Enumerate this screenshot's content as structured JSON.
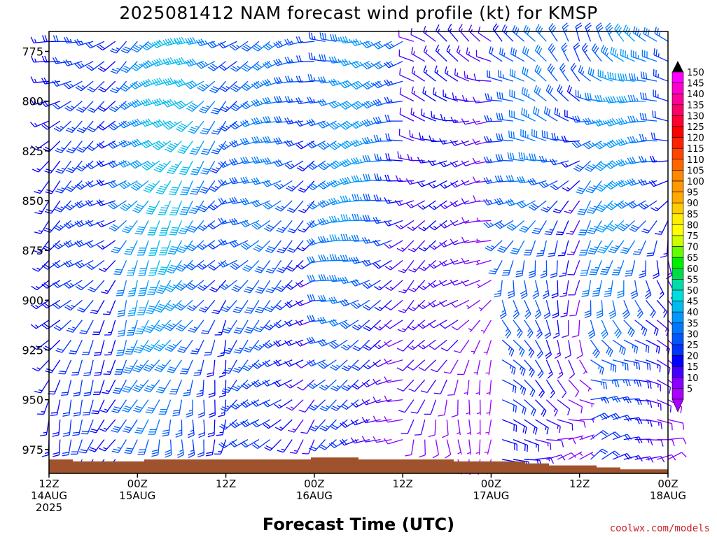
{
  "chart_data": {
    "type": "wind-barb-profile",
    "title": "2025081412 NAM forecast wind profile (kt) for KMSP",
    "xlabel": "Forecast Time (UTC)",
    "ylabel": "",
    "credit": "coolwx.com/models",
    "y_ticks": [
      "775",
      "800",
      "825",
      "850",
      "875",
      "900",
      "925",
      "950",
      "975"
    ],
    "ylim": [
      765,
      987
    ],
    "x_ticks": [
      {
        "hour": 0,
        "lines": [
          "12Z",
          "14AUG",
          "2025"
        ]
      },
      {
        "hour": 12,
        "lines": [
          "00Z",
          "15AUG"
        ]
      },
      {
        "hour": 24,
        "lines": [
          "12Z"
        ]
      },
      {
        "hour": 36,
        "lines": [
          "00Z",
          "16AUG"
        ]
      },
      {
        "hour": 48,
        "lines": [
          "12Z"
        ]
      },
      {
        "hour": 60,
        "lines": [
          "00Z",
          "17AUG"
        ]
      },
      {
        "hour": 72,
        "lines": [
          "12Z"
        ]
      },
      {
        "hour": 84,
        "lines": [
          "00Z",
          "18AUG"
        ]
      }
    ],
    "xlim": [
      0,
      84
    ],
    "colorbar": {
      "unit": "kt",
      "levels": [
        "150",
        "145",
        "140",
        "135",
        "130",
        "125",
        "120",
        "115",
        "110",
        "105",
        "100",
        "95",
        "90",
        "85",
        "80",
        "75",
        "70",
        "65",
        "60",
        "55",
        "50",
        "45",
        "40",
        "35",
        "30",
        "25",
        "20",
        "15",
        "10",
        "5"
      ],
      "colors": [
        "#ff00ff",
        "#ff00cc",
        "#ff0099",
        "#ff0066",
        "#ff0033",
        "#ff0000",
        "#ff2200",
        "#ff4400",
        "#ff6600",
        "#ff8800",
        "#ff9900",
        "#ffaa00",
        "#ffcc00",
        "#ffee00",
        "#ffff00",
        "#ccff00",
        "#66ff00",
        "#00ee00",
        "#00dd44",
        "#00ddaa",
        "#00dddd",
        "#00bbee",
        "#0099ff",
        "#0077ff",
        "#0055ff",
        "#0033ff",
        "#0000ff",
        "#4400ff",
        "#8800ff",
        "#aa00ff"
      ]
    },
    "terrain_color": "#a0522d",
    "surface_pressure_mb": [
      980,
      981,
      981,
      981,
      980,
      980,
      980,
      980,
      980,
      980,
      980,
      979,
      979,
      980,
      980,
      980,
      980,
      981,
      981,
      981,
      982,
      983,
      983,
      984,
      985,
      985,
      985
    ],
    "barb_columns_hours": [
      0,
      1.5,
      3,
      4.5,
      6,
      7.5,
      9,
      10.5,
      12,
      13.5,
      15,
      16.5,
      18,
      19.5,
      21,
      22.5,
      24,
      25.5,
      27,
      28.5,
      30,
      31.5,
      33,
      34.5,
      36,
      37.5,
      39,
      40.5,
      42,
      43.5,
      45,
      46.5,
      48,
      49.5,
      51,
      52.5,
      54,
      55.5,
      57,
      58.5,
      60,
      61.5,
      63,
      64.5,
      66,
      67.5,
      69,
      70.5,
      72,
      73.5,
      75,
      76.5,
      78,
      79.5,
      81,
      82.5,
      84
    ],
    "barb_levels_mb": [
      770,
      780,
      790,
      800,
      810,
      820,
      830,
      840,
      850,
      860,
      870,
      880,
      890,
      900,
      910,
      920,
      930,
      940,
      950,
      960,
      970,
      980
    ],
    "regimes": [
      {
        "hours": [
          0,
          10
        ],
        "speed_kt": [
          18,
          22
        ],
        "dir_deg": [
          250,
          200
        ]
      },
      {
        "hours": [
          10,
          24
        ],
        "speed_kt": [
          20,
          40
        ],
        "dir_deg": [
          240,
          190
        ]
      },
      {
        "hours": [
          24,
          36
        ],
        "speed_kt": [
          15,
          30
        ],
        "dir_deg": [
          250,
          220
        ]
      },
      {
        "hours": [
          36,
          48
        ],
        "speed_kt": [
          10,
          35
        ],
        "dir_deg": [
          260,
          240
        ]
      },
      {
        "hours": [
          48,
          60
        ],
        "speed_kt": [
          5,
          15
        ],
        "dir_deg": [
          300,
          180
        ]
      },
      {
        "hours": [
          60,
          72
        ],
        "speed_kt": [
          8,
          30
        ],
        "dir_deg": [
          330,
          80
        ]
      },
      {
        "hours": [
          72,
          84
        ],
        "speed_kt": [
          10,
          35
        ],
        "dir_deg": [
          320,
          60
        ]
      }
    ]
  }
}
